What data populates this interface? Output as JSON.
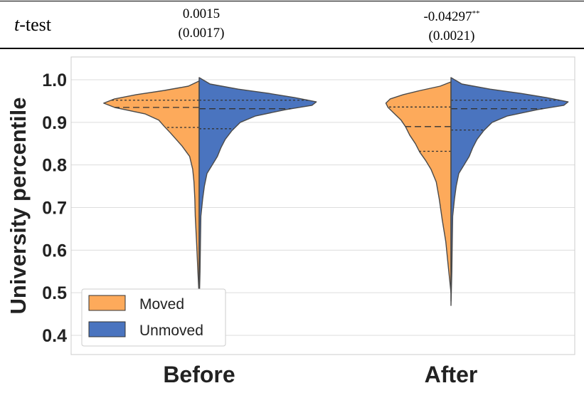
{
  "ttest": {
    "row_label_italic": "t",
    "row_label_rest": "-test",
    "before_estimate": "0.0015",
    "before_se": "(0.0017)",
    "after_estimate": "-0.04297",
    "after_stars": "**",
    "after_se": "(0.0021)"
  },
  "colors": {
    "moved": "#FDAA5B",
    "unmoved": "#4A74BF",
    "outline": "#4a4a4a",
    "grid": "#dddddd",
    "frame": "#cccccc"
  },
  "chart_data": {
    "type": "split-violin",
    "xlabel": "",
    "ylabel": "University percentile",
    "ylim": [
      0.38,
      1.05
    ],
    "yticks": [
      0.4,
      0.5,
      0.6,
      0.7,
      0.8,
      0.9,
      1.0
    ],
    "ytick_labels": [
      "0.4",
      "0.5",
      "0.6",
      "0.7",
      "0.8",
      "0.9",
      "1.0"
    ],
    "categories": [
      "Before",
      "After"
    ],
    "grid": true,
    "legend_position": "bottom-left",
    "series": [
      {
        "name": "Moved",
        "side": "left",
        "groups": [
          {
            "category": "Before",
            "quartiles": [
              0.888,
              0.935,
              0.952
            ],
            "range": [
              0.49,
              0.997
            ],
            "density_profile": [
              [
                0.49,
                0.0
              ],
              [
                0.55,
                0.03
              ],
              [
                0.62,
                0.06
              ],
              [
                0.68,
                0.09
              ],
              [
                0.72,
                0.1
              ],
              [
                0.76,
                0.12
              ],
              [
                0.79,
                0.15
              ],
              [
                0.82,
                0.22
              ],
              [
                0.845,
                0.4
              ],
              [
                0.86,
                0.53
              ],
              [
                0.875,
                0.66
              ],
              [
                0.89,
                0.8
              ],
              [
                0.905,
                0.93
              ],
              [
                0.92,
                1.25
              ],
              [
                0.935,
                1.95
              ],
              [
                0.945,
                2.2
              ],
              [
                0.955,
                1.95
              ],
              [
                0.965,
                1.45
              ],
              [
                0.975,
                0.8
              ],
              [
                0.985,
                0.25
              ],
              [
                0.997,
                0.0
              ]
            ]
          },
          {
            "category": "After",
            "quartiles": [
              0.832,
              0.89,
              0.936
            ],
            "range": [
              0.5,
              0.995
            ],
            "density_profile": [
              [
                0.5,
                0.0
              ],
              [
                0.56,
                0.06
              ],
              [
                0.62,
                0.12
              ],
              [
                0.67,
                0.2
              ],
              [
                0.72,
                0.27
              ],
              [
                0.76,
                0.34
              ],
              [
                0.79,
                0.46
              ],
              [
                0.81,
                0.58
              ],
              [
                0.83,
                0.72
              ],
              [
                0.85,
                0.82
              ],
              [
                0.87,
                0.95
              ],
              [
                0.89,
                1.05
              ],
              [
                0.905,
                1.15
              ],
              [
                0.92,
                1.3
              ],
              [
                0.935,
                1.45
              ],
              [
                0.945,
                1.5
              ],
              [
                0.955,
                1.4
              ],
              [
                0.965,
                1.1
              ],
              [
                0.975,
                0.7
              ],
              [
                0.985,
                0.25
              ],
              [
                0.995,
                0.0
              ]
            ]
          }
        ]
      },
      {
        "name": "Unmoved",
        "side": "right",
        "groups": [
          {
            "category": "Before",
            "quartiles": [
              0.885,
              0.932,
              0.952
            ],
            "range": [
              0.47,
              1.005
            ],
            "density_profile": [
              [
                0.47,
                0.0
              ],
              [
                0.55,
                0.02
              ],
              [
                0.62,
                0.03
              ],
              [
                0.68,
                0.04
              ],
              [
                0.72,
                0.08
              ],
              [
                0.75,
                0.12
              ],
              [
                0.78,
                0.18
              ],
              [
                0.8,
                0.3
              ],
              [
                0.82,
                0.42
              ],
              [
                0.84,
                0.5
              ],
              [
                0.86,
                0.6
              ],
              [
                0.88,
                0.75
              ],
              [
                0.9,
                0.95
              ],
              [
                0.915,
                1.3
              ],
              [
                0.93,
                2.0
              ],
              [
                0.94,
                2.6
              ],
              [
                0.948,
                2.7
              ],
              [
                0.958,
                2.2
              ],
              [
                0.968,
                1.6
              ],
              [
                0.978,
                0.9
              ],
              [
                0.99,
                0.25
              ],
              [
                1.005,
                0.0
              ]
            ]
          },
          {
            "category": "After",
            "quartiles": [
              0.882,
              0.932,
              0.952
            ],
            "range": [
              0.47,
              1.005
            ],
            "density_profile": [
              [
                0.47,
                0.0
              ],
              [
                0.55,
                0.02
              ],
              [
                0.62,
                0.03
              ],
              [
                0.68,
                0.04
              ],
              [
                0.72,
                0.08
              ],
              [
                0.75,
                0.12
              ],
              [
                0.78,
                0.18
              ],
              [
                0.8,
                0.3
              ],
              [
                0.82,
                0.42
              ],
              [
                0.84,
                0.5
              ],
              [
                0.86,
                0.6
              ],
              [
                0.88,
                0.75
              ],
              [
                0.9,
                0.95
              ],
              [
                0.915,
                1.3
              ],
              [
                0.93,
                2.0
              ],
              [
                0.94,
                2.6
              ],
              [
                0.948,
                2.7
              ],
              [
                0.958,
                2.2
              ],
              [
                0.968,
                1.6
              ],
              [
                0.978,
                0.9
              ],
              [
                0.99,
                0.25
              ],
              [
                1.005,
                0.0
              ]
            ]
          }
        ]
      }
    ],
    "legend": [
      "Moved",
      "Unmoved"
    ]
  }
}
